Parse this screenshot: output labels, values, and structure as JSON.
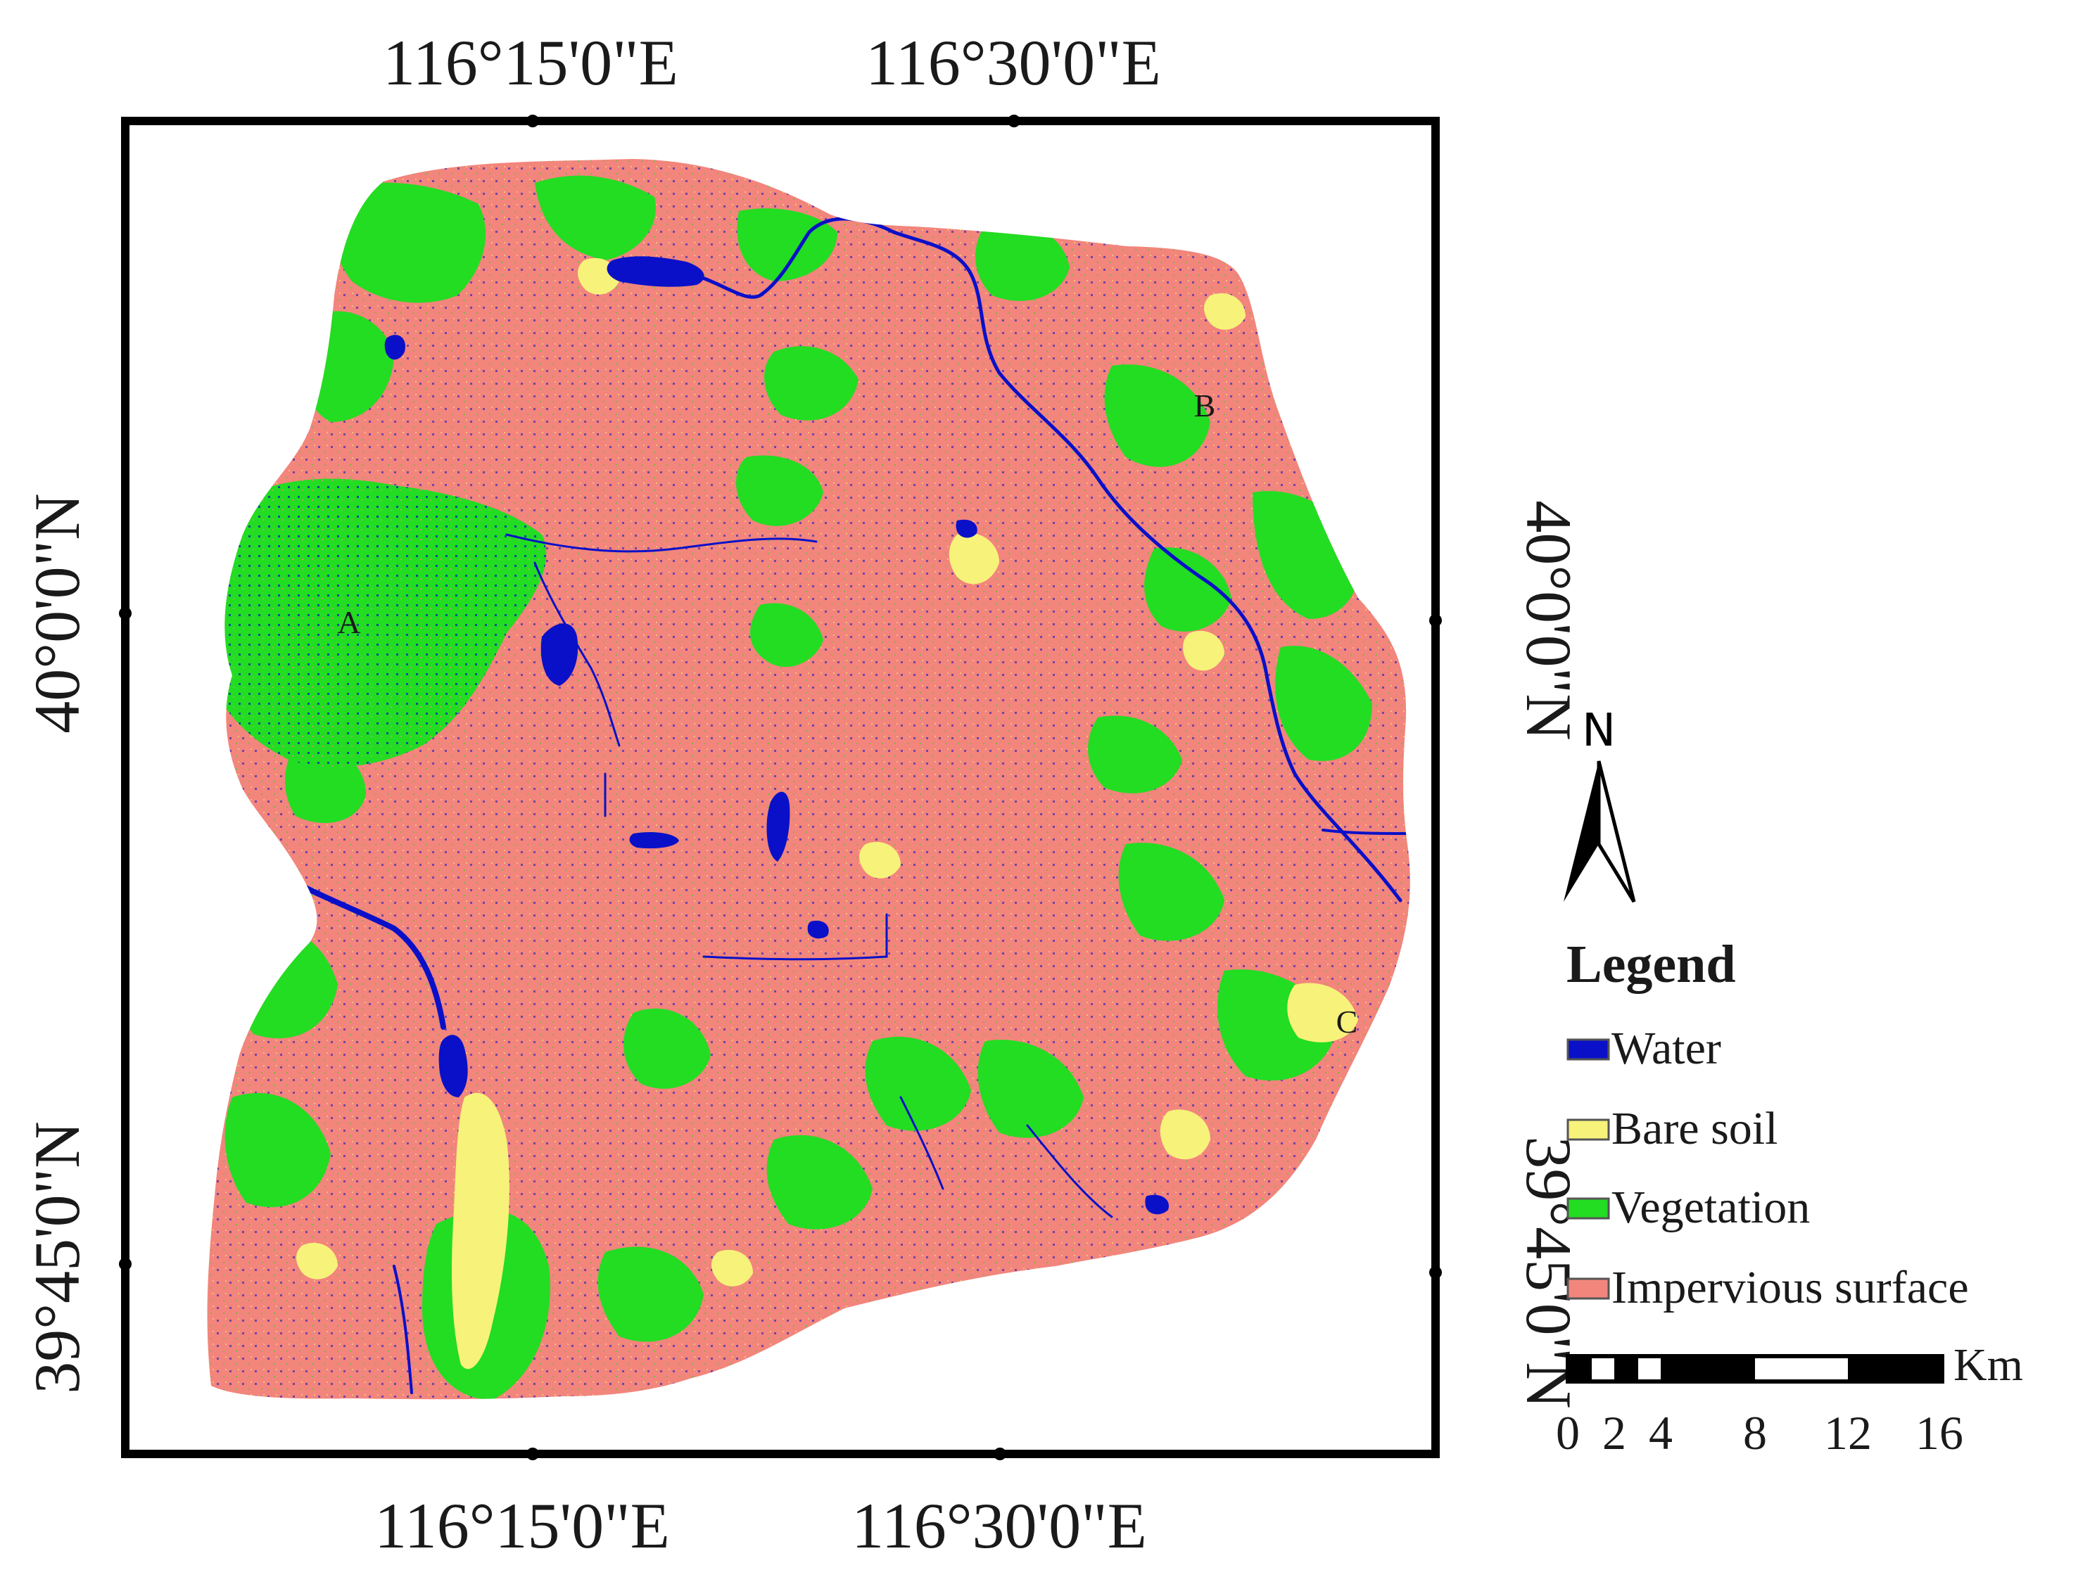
{
  "map": {
    "longitude_labels": [
      "116°15'0\"E",
      "116°30'0\"E"
    ],
    "latitude_labels": [
      "40°0'0\"N",
      "39°45'0\"N"
    ],
    "region_labels": [
      "A",
      "B",
      "C"
    ]
  },
  "north_arrow": {
    "label": "N"
  },
  "legend": {
    "title": "Legend",
    "items": [
      {
        "label": "Water",
        "color": "#0a10c8"
      },
      {
        "label": "Bare soil",
        "color": "#f7f27a"
      },
      {
        "label": "Vegetation",
        "color": "#22dd22"
      },
      {
        "label": "Impervious surface",
        "color": "#f2857c"
      }
    ]
  },
  "scale_bar": {
    "unit": "Km",
    "ticks": [
      "0",
      "2",
      "4",
      "8",
      "12",
      "16"
    ]
  }
}
